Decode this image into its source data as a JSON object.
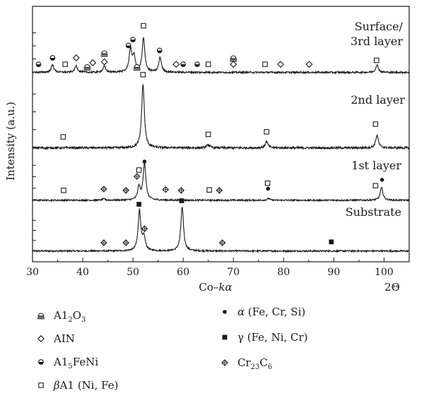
{
  "chart_data": {
    "type": "line",
    "xlabel": "Co-kα",
    "xlabel_parts": [
      "Co",
      "–",
      "k",
      "α"
    ],
    "x_unit_label": "2Θ",
    "ylabel": "Intensity (a.u.)",
    "xlim": [
      30,
      105
    ],
    "x_ticks": [
      30,
      40,
      50,
      60,
      70,
      80,
      90,
      100
    ],
    "series": [
      {
        "name": "Substrate",
        "label_parts": [
          "Substrate"
        ],
        "baseline": 0.05,
        "peaks": [
          [
            51.3,
            0.92
          ],
          [
            52.2,
            0.3
          ],
          [
            59.8,
            1.0
          ]
        ],
        "markers": [
          {
            "symbol": "cr23c6",
            "x": 44.2,
            "h": 0.08
          },
          {
            "symbol": "cr23c6",
            "x": 48.6,
            "h": 0.08
          },
          {
            "symbol": "gamma",
            "x": 51.2,
            "h": 0.96
          },
          {
            "symbol": "cr23c6",
            "x": 52.3,
            "h": 0.4
          },
          {
            "symbol": "gamma",
            "x": 59.7,
            "h": 1.04
          },
          {
            "symbol": "cr23c6",
            "x": 67.8,
            "h": 0.08
          },
          {
            "symbol": "gamma",
            "x": 89.5,
            "h": 0.1
          }
        ]
      },
      {
        "name": "1st layer",
        "label_parts": [
          "1st layer"
        ],
        "baseline": 0.05,
        "peaks": [
          [
            51.2,
            0.3
          ],
          [
            52.3,
            0.88
          ],
          [
            99.5,
            0.3
          ],
          [
            77,
            0.04
          ],
          [
            44.2,
            0.03
          ]
        ],
        "markers": [
          {
            "symbol": "beta",
            "x": 36.2,
            "h": 0.12
          },
          {
            "symbol": "cr23c6",
            "x": 44.2,
            "h": 0.15
          },
          {
            "symbol": "cr23c6",
            "x": 48.6,
            "h": 0.12
          },
          {
            "symbol": "cr23c6",
            "x": 50.8,
            "h": 0.45
          },
          {
            "symbol": "beta",
            "x": 51.2,
            "h": 0.6
          },
          {
            "symbol": "alpha",
            "x": 52.3,
            "h": 0.8
          },
          {
            "symbol": "cr23c6",
            "x": 56.5,
            "h": 0.14
          },
          {
            "symbol": "cr23c6",
            "x": 59.6,
            "h": 0.12
          },
          {
            "symbol": "beta",
            "x": 65.2,
            "h": 0.13
          },
          {
            "symbol": "cr23c6",
            "x": 67.2,
            "h": 0.12
          },
          {
            "symbol": "beta",
            "x": 76.8,
            "h": 0.29
          },
          {
            "symbol": "alpha",
            "x": 76.9,
            "h": 0.16
          },
          {
            "symbol": "beta",
            "x": 98.3,
            "h": 0.23
          },
          {
            "symbol": "alpha",
            "x": 99.6,
            "h": 0.37
          }
        ]
      },
      {
        "name": "2nd layer",
        "label_parts": [
          "2nd layer"
        ],
        "baseline": 0.04,
        "peaks": [
          [
            52.0,
            1.0
          ],
          [
            98.6,
            0.2
          ],
          [
            76.6,
            0.1
          ],
          [
            65.0,
            0.05
          ]
        ],
        "markers": [
          {
            "symbol": "beta",
            "x": 36.1,
            "h": 0.1
          },
          {
            "symbol": "beta",
            "x": 52.0,
            "h": 1.08
          },
          {
            "symbol": "beta",
            "x": 65.0,
            "h": 0.14
          },
          {
            "symbol": "beta",
            "x": 76.6,
            "h": 0.18
          },
          {
            "symbol": "beta",
            "x": 98.3,
            "h": 0.3
          }
        ]
      },
      {
        "name": "Surface/ 3rd layer",
        "label_parts": [
          "Surface/",
          "3rd layer"
        ],
        "baseline": 0.05,
        "peaks": [
          [
            34,
            0.15
          ],
          [
            38.7,
            0.13
          ],
          [
            44.3,
            0.12
          ],
          [
            49.5,
            0.45
          ],
          [
            50.2,
            0.3
          ],
          [
            52.1,
            0.68
          ],
          [
            55.4,
            0.3
          ],
          [
            98.6,
            0.15
          ]
        ],
        "markers": [
          {
            "symbol": "al5",
            "x": 31.2,
            "h": 0.07
          },
          {
            "symbol": "al5",
            "x": 34.0,
            "h": 0.2
          },
          {
            "symbol": "beta",
            "x": 36.5,
            "h": 0.07
          },
          {
            "symbol": "aln",
            "x": 38.7,
            "h": 0.2
          },
          {
            "symbol": "al2o3",
            "x": 40.9,
            "h": 0.02
          },
          {
            "symbol": "aln",
            "x": 42.0,
            "h": 0.1
          },
          {
            "symbol": "al2o3",
            "x": 44.3,
            "h": 0.3
          },
          {
            "symbol": "aln",
            "x": 44.3,
            "h": 0.12
          },
          {
            "symbol": "al5",
            "x": 49.1,
            "h": 0.45
          },
          {
            "symbol": "al5",
            "x": 50.0,
            "h": 0.57
          },
          {
            "symbol": "al2o3",
            "x": 50.8,
            "h": 0.02
          },
          {
            "symbol": "beta",
            "x": 52.1,
            "h": 0.85
          },
          {
            "symbol": "al5",
            "x": 55.3,
            "h": 0.35
          },
          {
            "symbol": "aln",
            "x": 58.6,
            "h": 0.07
          },
          {
            "symbol": "al5",
            "x": 60.0,
            "h": 0.07
          },
          {
            "symbol": "al5",
            "x": 62.8,
            "h": 0.07
          },
          {
            "symbol": "beta",
            "x": 65.0,
            "h": 0.07
          },
          {
            "symbol": "al2o3",
            "x": 70.0,
            "h": 0.2
          },
          {
            "symbol": "aln",
            "x": 70.0,
            "h": 0.07
          },
          {
            "symbol": "beta",
            "x": 76.3,
            "h": 0.07
          },
          {
            "symbol": "aln",
            "x": 79.4,
            "h": 0.07
          },
          {
            "symbol": "aln",
            "x": 85.1,
            "h": 0.07
          },
          {
            "symbol": "beta",
            "x": 98.5,
            "h": 0.15
          }
        ]
      }
    ]
  },
  "legend": {
    "left": [
      {
        "symbol": "al2o3",
        "parts": [
          {
            "t": "A1",
            "s": "n"
          },
          {
            "t": "2",
            "s": "sub"
          },
          {
            "t": "O",
            "s": "n"
          },
          {
            "t": "3",
            "s": "sub"
          }
        ]
      },
      {
        "symbol": "aln",
        "parts": [
          {
            "t": "AIN",
            "s": "n"
          }
        ]
      },
      {
        "symbol": "al5",
        "parts": [
          {
            "t": "A1",
            "s": "n"
          },
          {
            "t": "5",
            "s": "sub"
          },
          {
            "t": "FeNi",
            "s": "n"
          }
        ]
      },
      {
        "symbol": "beta",
        "parts": [
          {
            "t": "β",
            "s": "it"
          },
          {
            "t": "A1 (Ni, Fe)",
            "s": "n"
          }
        ]
      }
    ],
    "right": [
      {
        "symbol": "alpha",
        "parts": [
          {
            "t": "α",
            "s": "it"
          },
          {
            "t": " (Fe, Cr, Si)",
            "s": "n"
          }
        ]
      },
      {
        "symbol": "gamma",
        "parts": [
          {
            "t": "γ (Fe, Ni, Cr)",
            "s": "n"
          }
        ]
      },
      {
        "symbol": "cr23c6",
        "parts": [
          {
            "t": "Cr",
            "s": "n"
          },
          {
            "t": "23",
            "s": "sub"
          },
          {
            "t": "C",
            "s": "n"
          },
          {
            "t": "6",
            "s": "sub"
          }
        ]
      }
    ]
  },
  "colors": {
    "ink": "#1a1a1a",
    "background": "#ffffff"
  }
}
